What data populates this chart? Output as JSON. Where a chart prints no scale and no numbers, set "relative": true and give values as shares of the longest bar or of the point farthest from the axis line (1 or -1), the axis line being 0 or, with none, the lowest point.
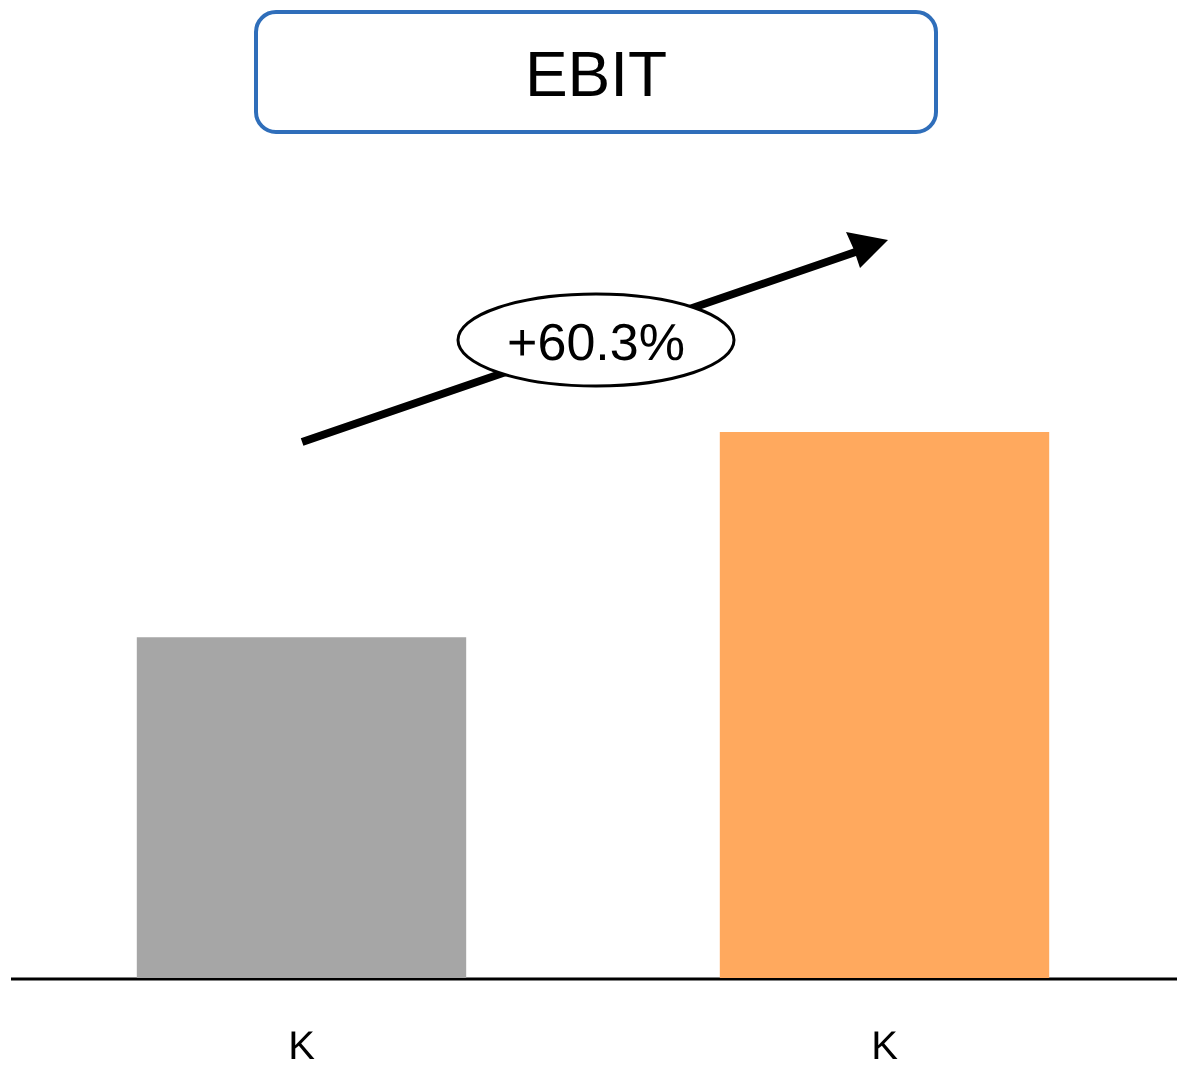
{
  "chart_data": {
    "type": "bar",
    "title": "EBIT",
    "relative": true,
    "categories": [
      "K",
      "K"
    ],
    "values": [
      0.624,
      1
    ],
    "colors": [
      "#a6a6a6",
      "#ffa95e"
    ],
    "annotations": [
      "+60.3%"
    ]
  }
}
